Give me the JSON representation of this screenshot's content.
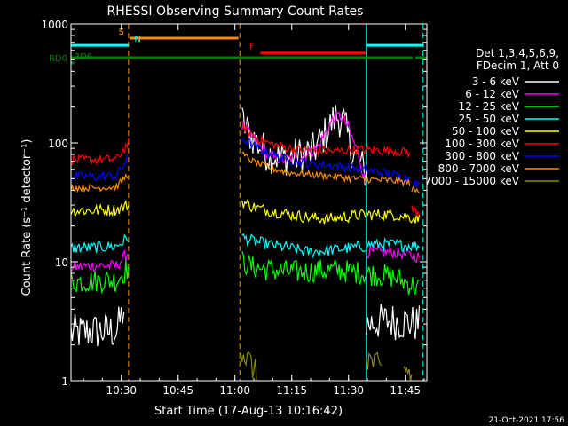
{
  "chart_data": {
    "type": "line",
    "title": "RHESSI Observing Summary Count Rates",
    "xlabel": "Start Time (17-Aug-13 10:16:42)",
    "ylabel": "Count Rate (s⁻¹ detector⁻¹)",
    "y_scale": "log",
    "ylim": [
      1,
      1000
    ],
    "xlim_minutes": [
      0,
      94
    ],
    "x_ticks": [
      {
        "label": "10:30",
        "m": 13.3
      },
      {
        "label": "10:45",
        "m": 28.3
      },
      {
        "label": "11:00",
        "m": 43.3
      },
      {
        "label": "11:15",
        "m": 58.3
      },
      {
        "label": "11:30",
        "m": 73.3
      },
      {
        "label": "11:45",
        "m": 88.3
      }
    ],
    "y_ticks": [
      {
        "label": "1",
        "v": 1
      },
      {
        "label": "10",
        "v": 10
      },
      {
        "label": "100",
        "v": 100
      },
      {
        "label": "1000",
        "v": 1000
      }
    ],
    "legend_header": [
      "Det 1,3,4,5,6,9,",
      "FDecim 1, Att 0"
    ],
    "series": [
      {
        "name": "3 - 6 keV",
        "color": "#ffffff",
        "segments": [
          {
            "points": [
              [
                0,
                2.5
              ],
              [
                5,
                2.6
              ],
              [
                12,
                2.6
              ],
              [
                14,
                4
              ]
            ]
          },
          {
            "points": [
              [
                45.2,
                150
              ],
              [
                48,
                110
              ],
              [
                52,
                80
              ],
              [
                56,
                75
              ],
              [
                60,
                78
              ],
              [
                64,
                85
              ],
              [
                68,
                130
              ],
              [
                70,
                170
              ],
              [
                72,
                150
              ],
              [
                74,
                90
              ],
              [
                78,
                55
              ]
            ]
          },
          {
            "points": [
              [
                78,
                3
              ],
              [
                84,
                3.2
              ],
              [
                92,
                3
              ]
            ]
          }
        ]
      },
      {
        "name": "6 - 12 keV",
        "color": "#ff00ff",
        "segments": [
          {
            "points": [
              [
                0,
                9
              ],
              [
                6,
                9.3
              ],
              [
                12,
                9.2
              ],
              [
                15.2,
                12
              ]
            ]
          },
          {
            "points": [
              [
                45.2,
                140
              ],
              [
                48,
                110
              ],
              [
                52,
                78
              ],
              [
                56,
                72
              ],
              [
                60,
                75
              ],
              [
                65,
                90
              ],
              [
                69,
                155
              ],
              [
                71,
                170
              ],
              [
                73,
                140
              ],
              [
                76,
                80
              ],
              [
                77.8,
                45
              ]
            ]
          },
          {
            "points": [
              [
                78,
                12
              ],
              [
                85,
                12
              ],
              [
                92,
                11
              ]
            ]
          }
        ]
      },
      {
        "name": "12 - 25 keV",
        "color": "#00ff00",
        "segments": [
          {
            "points": [
              [
                0,
                6.8
              ],
              [
                6,
                6.9
              ],
              [
                12,
                7
              ],
              [
                15.2,
                9
              ]
            ]
          },
          {
            "points": [
              [
                45.2,
                10
              ],
              [
                48,
                9
              ],
              [
                52,
                8.6
              ],
              [
                56,
                8.3
              ],
              [
                60,
                8.2
              ],
              [
                65,
                8.4
              ],
              [
                70,
                8.5
              ],
              [
                75,
                8.2
              ],
              [
                77.8,
                8
              ]
            ]
          },
          {
            "points": [
              [
                78,
                8
              ],
              [
                85,
                7.5
              ],
              [
                92,
                6
              ]
            ]
          }
        ]
      },
      {
        "name": "25 - 50 keV",
        "color": "#00ffff",
        "segments": [
          {
            "points": [
              [
                0,
                13
              ],
              [
                6,
                13.2
              ],
              [
                12,
                13.5
              ],
              [
                15.2,
                16
              ]
            ]
          },
          {
            "points": [
              [
                45.2,
                16
              ],
              [
                48,
                15
              ],
              [
                52,
                14
              ],
              [
                58,
                13
              ],
              [
                63,
                12
              ],
              [
                68,
                12.5
              ],
              [
                73,
                13
              ],
              [
                77.8,
                13.5
              ]
            ]
          },
          {
            "points": [
              [
                78,
                14
              ],
              [
                85,
                14
              ],
              [
                92,
                13.5
              ]
            ]
          }
        ]
      },
      {
        "name": "50 - 100 keV",
        "color": "#ffff00",
        "segments": [
          {
            "points": [
              [
                0,
                27
              ],
              [
                6,
                27
              ],
              [
                12,
                27.5
              ],
              [
                15.2,
                30
              ]
            ]
          },
          {
            "points": [
              [
                45.2,
                32
              ],
              [
                48,
                29
              ],
              [
                52,
                27
              ],
              [
                58,
                25
              ],
              [
                63,
                23.5
              ],
              [
                68,
                23
              ],
              [
                73,
                24
              ],
              [
                77.8,
                25
              ]
            ]
          },
          {
            "points": [
              [
                78,
                25
              ],
              [
                85,
                25
              ],
              [
                92,
                23
              ]
            ]
          }
        ]
      },
      {
        "name": "100 - 300 keV",
        "color": "#ff0000",
        "segments": [
          {
            "points": [
              [
                0,
                72
              ],
              [
                6,
                72
              ],
              [
                12,
                73
              ],
              [
                15.2,
                100
              ]
            ]
          },
          {
            "points": [
              [
                45.2,
                140
              ],
              [
                48,
                115
              ],
              [
                52,
                100
              ],
              [
                56,
                92
              ],
              [
                60,
                88
              ],
              [
                65,
                86
              ],
              [
                70,
                85
              ],
              [
                75,
                88
              ],
              [
                80,
                87
              ],
              [
                85,
                86
              ],
              [
                89.5,
                83
              ]
            ]
          },
          {
            "points": [
              [
                90,
                28
              ],
              [
                92,
                26
              ]
            ]
          }
        ]
      },
      {
        "name": "300 - 800 keV",
        "color": "#0000ff",
        "segments": [
          {
            "points": [
              [
                0,
                52
              ],
              [
                6,
                52
              ],
              [
                12,
                53
              ],
              [
                15.2,
                75
              ]
            ]
          },
          {
            "points": [
              [
                45.2,
                110
              ],
              [
                48,
                95
              ],
              [
                52,
                82
              ],
              [
                56,
                74
              ],
              [
                60,
                69
              ],
              [
                65,
                66
              ],
              [
                70,
                64
              ],
              [
                75,
                61
              ],
              [
                80,
                58
              ],
              [
                85,
                54
              ],
              [
                89.5,
                50
              ]
            ]
          },
          {
            "points": [
              [
                90,
                45
              ],
              [
                92,
                44
              ]
            ]
          }
        ]
      },
      {
        "name": "800 - 7000 keV",
        "color": "#ff8c00",
        "segments": [
          {
            "points": [
              [
                0,
                42
              ],
              [
                6,
                42
              ],
              [
                12,
                42.5
              ],
              [
                15.2,
                55
              ]
            ]
          },
          {
            "points": [
              [
                45.2,
                80
              ],
              [
                48,
                70
              ],
              [
                52,
                62
              ],
              [
                58,
                56
              ],
              [
                64,
                54
              ],
              [
                70,
                52
              ],
              [
                75,
                50
              ],
              [
                80,
                49
              ],
              [
                85,
                48
              ],
              [
                89.5,
                46
              ]
            ]
          },
          {
            "points": [
              [
                90,
                40
              ],
              [
                92,
                39
              ]
            ]
          }
        ]
      },
      {
        "name": "7000 - 15000 keV",
        "color": "#8b8b00",
        "segments": [
          {
            "points": [
              [
                44.5,
                2
              ],
              [
                46,
                1.6
              ],
              [
                48,
                1.3
              ],
              [
                49,
                1.1
              ]
            ]
          },
          {
            "points": [
              [
                78,
                1.6
              ],
              [
                80,
                1.4
              ],
              [
                82,
                1.2
              ]
            ]
          },
          {
            "points": [
              [
                88,
                1.3
              ],
              [
                90,
                1.1
              ]
            ]
          }
        ]
      }
    ],
    "vertical_lines": [
      {
        "m": 15.2,
        "color": "#ff8c00",
        "style": "dashed"
      },
      {
        "m": 44.6,
        "color": "#ff8c00",
        "style": "dashed"
      },
      {
        "m": 78.0,
        "color": "#00ffff",
        "style": "solid"
      },
      {
        "m": 93.0,
        "color": "#00ffff",
        "style": "dashed"
      }
    ],
    "flag_bars": [
      {
        "label": "S",
        "label_m": 13.3,
        "color": "#ff8c00",
        "segments": [
          [
            15.5,
            44.2
          ]
        ],
        "v": 760
      },
      {
        "label": "N",
        "label_m": 17.6,
        "color": "#00ffff",
        "segments": [
          [
            0,
            15.2
          ],
          [
            78,
            93.2
          ]
        ],
        "v": 660
      },
      {
        "label": "F",
        "label_m": 47.8,
        "color": "#ff0000",
        "segments": [
          [
            50,
            77.8
          ]
        ],
        "v": 570
      },
      {
        "label": "RD0",
        "label_m": null,
        "color": "#008000",
        "segments": [
          [
            0,
            90.2
          ],
          [
            91,
            94
          ]
        ],
        "v": 520
      },
      {
        "label": "RD6",
        "label_m": 3.2,
        "color": "#008000",
        "segments": [
          [
            0,
            0.8
          ]
        ],
        "v": 470
      }
    ],
    "footer_timestamp": "21-Oct-2021 17:56"
  }
}
